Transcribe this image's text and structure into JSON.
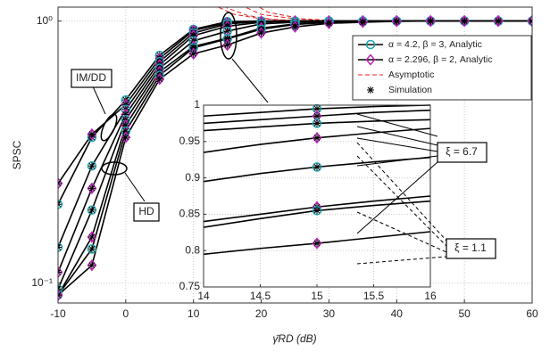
{
  "chart_data": [
    {
      "type": "line",
      "ylabel": "SPSC",
      "xlabel": "γ̄RD (dB)",
      "log_y": true,
      "grid": true,
      "x": [
        -10,
        -5,
        0,
        5,
        10,
        15,
        20,
        25,
        30,
        35,
        40,
        45,
        50,
        55,
        60
      ],
      "xlim": [
        -10,
        60
      ],
      "xticks": [
        -10,
        0,
        10,
        20,
        30,
        40,
        50,
        60
      ],
      "ylim": [
        0.084,
        1.13
      ],
      "yticks": [
        {
          "value": 0.1,
          "label": "10⁻¹"
        },
        {
          "value": 1,
          "label": "10⁰"
        }
      ],
      "line_color": "#000000",
      "series": [
        {
          "color": "#1aa7b0",
          "marker": "circle",
          "values": [
            0.2,
            0.36,
            0.5,
            0.74,
            0.93,
            0.995,
            1,
            1,
            1,
            1,
            1,
            1,
            1,
            1,
            1
          ]
        },
        {
          "color": "#c020c0",
          "marker": "diamond",
          "values": [
            0.24,
            0.37,
            0.48,
            0.72,
            0.92,
            0.985,
            0.998,
            1,
            1,
            1,
            1,
            1,
            1,
            1,
            1
          ]
        },
        {
          "color": "#1aa7b0",
          "marker": "circle",
          "values": [
            0.137,
            0.28,
            0.46,
            0.7,
            0.9,
            0.975,
            0.995,
            0.999,
            1,
            1,
            1,
            1,
            1,
            1,
            1
          ]
        },
        {
          "color": "#c020c0",
          "marker": "diamond",
          "values": [
            0.11,
            0.23,
            0.44,
            0.68,
            0.88,
            0.955,
            0.99,
            0.998,
            1,
            1,
            1,
            1,
            1,
            1,
            1
          ]
        },
        {
          "color": "#1aa7b0",
          "marker": "circle",
          "values": [
            0.095,
            0.19,
            0.42,
            0.66,
            0.84,
            0.915,
            0.975,
            0.99,
            0.997,
            1,
            1,
            1,
            1,
            1,
            1
          ]
        },
        {
          "color": "#c020c0",
          "marker": "diamond",
          "values": [
            0.09,
            0.15,
            0.4,
            0.64,
            0.8,
            0.86,
            0.94,
            0.975,
            0.99,
            0.997,
            1,
            1,
            1,
            1,
            1
          ]
        },
        {
          "color": "#1aa7b0",
          "marker": "circle",
          "values": [
            0.09,
            0.135,
            0.38,
            0.62,
            0.79,
            0.855,
            0.93,
            0.97,
            0.988,
            0.995,
            1,
            1,
            1,
            1,
            1
          ]
        },
        {
          "color": "#c020c0",
          "marker": "diamond",
          "values": [
            0.09,
            0.117,
            0.36,
            0.6,
            0.75,
            0.81,
            0.9,
            0.95,
            0.98,
            0.99,
            0.997,
            1,
            1,
            1,
            1
          ]
        }
      ],
      "asymptotic": {
        "color": "#e02020",
        "lines": [
          {
            "x": [
              10,
              13,
              16,
              20,
              25,
              30
            ],
            "values": [
              1.4,
              1.15,
              1.06,
              1.02,
              1.005,
              1
            ]
          },
          {
            "x": [
              12,
              15,
              18,
              22,
              28
            ],
            "values": [
              1.4,
              1.12,
              1.05,
              1.01,
              1
            ]
          },
          {
            "x": [
              14,
              17,
              20,
              25,
              30
            ],
            "values": [
              1.5,
              1.15,
              1.06,
              1.02,
              1
            ]
          },
          {
            "x": [
              16,
              18,
              21,
              26,
              32
            ],
            "values": [
              1.5,
              1.2,
              1.08,
              1.02,
              1
            ]
          }
        ]
      },
      "simulation_marker_color": "#000000",
      "legend": [
        {
          "label": "α = 4.2, β = 3, Analytic",
          "color": "#1aa7b0",
          "marker": "circle"
        },
        {
          "label": "α = 2.296, β = 2, Analytic",
          "color": "#c020c0",
          "marker": "diamond"
        },
        {
          "label": "Asymptotic",
          "color": "#e02020",
          "marker": "dash"
        },
        {
          "label": "Simulation",
          "color": "#000000",
          "marker": "asterisk"
        }
      ],
      "legend_position": "upper right",
      "annotations": [
        "IM/DD",
        "HD",
        "ξ = 6.7",
        "ξ = 1.1"
      ]
    },
    {
      "type": "line",
      "grid": true,
      "x": [
        14,
        14.5,
        15,
        15.5,
        16
      ],
      "xlim": [
        14,
        16
      ],
      "xticks": [
        14,
        14.5,
        15,
        15.5,
        16
      ],
      "ylim": [
        0.75,
        1
      ],
      "yticks": [
        0.75,
        0.8,
        0.85,
        0.9,
        0.95,
        1
      ],
      "line_color": "#000000",
      "series": [
        {
          "values": [
            0.985,
            0.99,
            0.995,
            0.998,
            1
          ]
        },
        {
          "values": [
            0.975,
            0.98,
            0.985,
            0.99,
            0.993
          ]
        },
        {
          "values": [
            0.965,
            0.97,
            0.975,
            0.978,
            0.98
          ]
        },
        {
          "values": [
            0.935,
            0.946,
            0.955,
            0.962,
            0.968
          ]
        },
        {
          "values": [
            0.895,
            0.906,
            0.915,
            0.922,
            0.928
          ]
        },
        {
          "values": [
            0.84,
            0.85,
            0.86,
            0.868,
            0.875
          ]
        },
        {
          "values": [
            0.832,
            0.844,
            0.855,
            0.862,
            0.868
          ]
        },
        {
          "values": [
            0.795,
            0.803,
            0.81,
            0.818,
            0.826
          ]
        }
      ]
    }
  ]
}
